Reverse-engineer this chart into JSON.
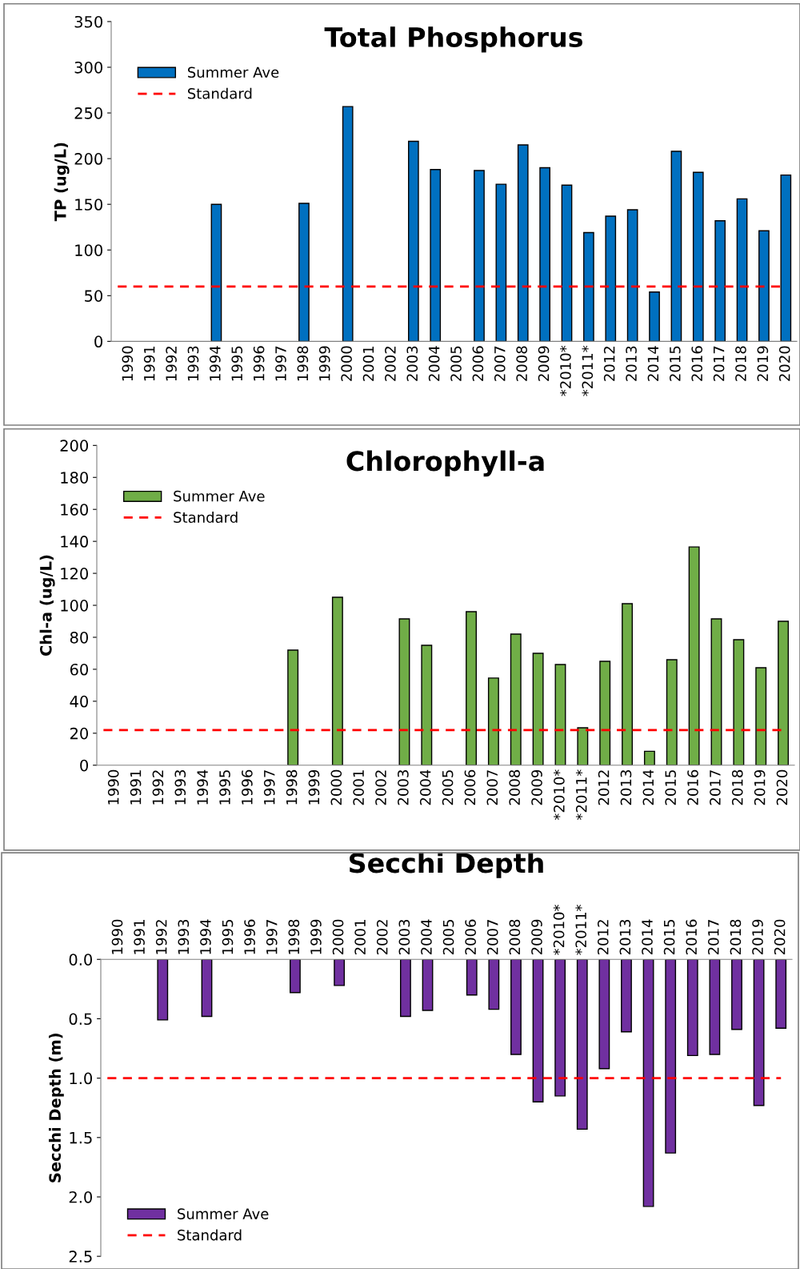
{
  "chart_data": [
    {
      "type": "bar",
      "title": "Total Phosphorus",
      "ylabel": "TP (ug/L)",
      "categories": [
        "1990",
        "1991",
        "1992",
        "1993",
        "1994",
        "1995",
        "1996",
        "1997",
        "1998",
        "1999",
        "2000",
        "2001",
        "2002",
        "2003",
        "2004",
        "2005",
        "2006",
        "2007",
        "2008",
        "2009",
        "*2010*",
        "*2011*",
        "2012",
        "2013",
        "2014",
        "2015",
        "2016",
        "2017",
        "2018",
        "2019",
        "2020"
      ],
      "series": [
        {
          "name": "Summer Ave",
          "color": "#0070c0",
          "values": [
            null,
            null,
            null,
            null,
            150,
            null,
            null,
            null,
            151,
            null,
            257,
            null,
            null,
            219,
            188,
            null,
            187,
            172,
            215,
            190,
            171,
            119,
            137,
            144,
            54,
            208,
            185,
            132,
            156,
            121,
            182
          ]
        }
      ],
      "ylim": [
        0,
        350
      ],
      "yticks": [
        0,
        50,
        100,
        150,
        200,
        250,
        300,
        350
      ],
      "ref_lines": [
        {
          "axis": "y",
          "value": 60,
          "label": "Standard",
          "color": "#ff0000",
          "line_style": "dashed"
        }
      ],
      "grid": false,
      "legend": "top left"
    },
    {
      "type": "bar",
      "title": "Chlorophyll-a",
      "ylabel": "Chl-a (ug/L)",
      "categories": [
        "1990",
        "1991",
        "1992",
        "1993",
        "1994",
        "1995",
        "1996",
        "1997",
        "1998",
        "1999",
        "2000",
        "2001",
        "2002",
        "2003",
        "2004",
        "2005",
        "2006",
        "2007",
        "2008",
        "2009",
        "*2010*",
        "*2011*",
        "2012",
        "2013",
        "2014",
        "2015",
        "2016",
        "2017",
        "2018",
        "2019",
        "2020"
      ],
      "series": [
        {
          "name": "Summer Ave",
          "color": "#70ad47",
          "values": [
            null,
            null,
            null,
            null,
            null,
            null,
            null,
            null,
            72,
            null,
            105,
            null,
            null,
            91.5,
            75,
            null,
            96,
            54.5,
            82,
            70,
            63,
            23.4,
            65,
            101,
            8.7,
            66,
            136.5,
            91.5,
            78.5,
            61,
            90
          ]
        }
      ],
      "ylim": [
        0,
        200
      ],
      "yticks": [
        0,
        20,
        40,
        60,
        80,
        100,
        120,
        140,
        160,
        180,
        200
      ],
      "ref_lines": [
        {
          "axis": "y",
          "value": 22,
          "label": "Standard",
          "color": "#ff0000",
          "line_style": "dashed"
        }
      ],
      "grid": false,
      "legend": "top left"
    },
    {
      "type": "bar",
      "title": "Secchi Depth",
      "ylabel": "Secchi Depth (m)",
      "categories": [
        "1990",
        "1991",
        "1992",
        "1993",
        "1994",
        "1995",
        "1996",
        "1997",
        "1998",
        "1999",
        "2000",
        "2001",
        "2002",
        "2003",
        "2004",
        "2005",
        "2006",
        "2007",
        "2008",
        "2009",
        "*2010*",
        "*2011*",
        "2012",
        "2013",
        "2014",
        "2015",
        "2016",
        "2017",
        "2018",
        "2019",
        "2020"
      ],
      "series": [
        {
          "name": "Summer Ave",
          "color": "#7030a0",
          "values": [
            null,
            null,
            0.51,
            null,
            0.48,
            null,
            null,
            null,
            0.28,
            null,
            0.22,
            null,
            null,
            0.48,
            0.43,
            null,
            0.3,
            0.42,
            0.8,
            1.2,
            1.15,
            1.43,
            0.92,
            0.61,
            2.08,
            1.63,
            0.81,
            0.8,
            0.59,
            1.23,
            0.58
          ]
        }
      ],
      "ylim": [
        2.5,
        0
      ],
      "yticks": [
        {
          "value": 0,
          "label": "0.0"
        },
        {
          "value": 0.5,
          "label": "0.5"
        },
        {
          "value": 1,
          "label": "1.0"
        },
        {
          "value": 1.5,
          "label": "1.5"
        },
        {
          "value": 2,
          "label": "2.0"
        },
        {
          "value": 2.5,
          "label": "2.5"
        }
      ],
      "ref_lines": [
        {
          "axis": "y",
          "value": 1,
          "label": "Standard",
          "color": "#ff0000",
          "line_style": "dashed"
        }
      ],
      "grid": false,
      "legend": "bottom left"
    }
  ]
}
